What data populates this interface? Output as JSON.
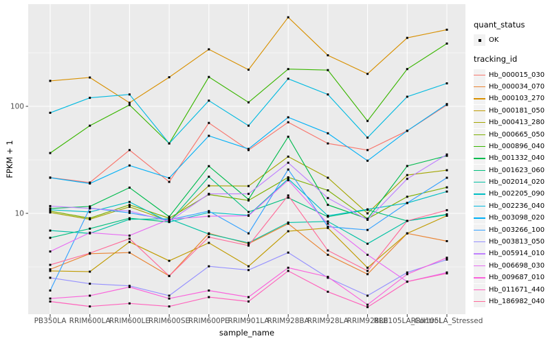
{
  "figure": {
    "background": "#FFFFFF",
    "panel_background": "#EBEBEB",
    "gridline_color": "#FFFFFF",
    "axis_text_color": "#4D4D4D",
    "tick_mark_color": "#333333",
    "marker_color": "#000000"
  },
  "axes": {
    "x_title": "sample_name",
    "y_title": "FPKM + 1",
    "y_scale": "log10",
    "y_major_ticks": [
      {
        "label": "100",
        "value": 100
      },
      {
        "label": "10",
        "value": 10
      }
    ],
    "y_minor_values": [
      3.1623,
      31.623,
      316.23
    ]
  },
  "legend": {
    "quant_title": "quant_status",
    "quant_items": [
      {
        "label": "OK"
      }
    ],
    "tracking_title": "tracking_id"
  },
  "chart_data": {
    "type": "line",
    "title": "",
    "xlabel": "sample_name",
    "ylabel": "FPKM + 1",
    "y_scale": "log10",
    "ylim": [
      1.07,
      860
    ],
    "grid": true,
    "legend_position": "right",
    "marker": "black-square",
    "categories": [
      "PB350LA",
      "RRIM600LA",
      "RRIM600LE",
      "RRIM600SE",
      "RRIM600PE",
      "RRIM901LA",
      "RRIM928BA",
      "RRIM928LA",
      "RRIM928LB",
      "RRII105LA_Control",
      "RRII105LA_Stressed"
    ],
    "series": [
      {
        "name": "Hb_000015_030",
        "color": "#F8766D",
        "values": [
          21.6,
          19.4,
          39,
          19.7,
          70,
          39,
          71,
          45,
          39,
          59,
          103
        ]
      },
      {
        "name": "Hb_000034_070",
        "color": "#EA8331",
        "values": [
          3.0,
          4.2,
          4.3,
          2.6,
          6.5,
          5.2,
          8.0,
          4.1,
          2.7,
          6.5,
          5.5
        ]
      },
      {
        "name": "Hb_000103_270",
        "color": "#D89000",
        "values": [
          173,
          186,
          108,
          187,
          341,
          220,
          679,
          300,
          201,
          436,
          520
        ]
      },
      {
        "name": "Hb_000181_050",
        "color": "#C09B00",
        "values": [
          2.9,
          2.85,
          5.4,
          3.6,
          5.3,
          3.2,
          6.8,
          7.3,
          3.1,
          6.5,
          9.5
        ]
      },
      {
        "name": "Hb_000413_280",
        "color": "#A3A500",
        "values": [
          10.2,
          8.8,
          11.5,
          8.5,
          18.1,
          18,
          33.9,
          21.5,
          10.0,
          22.8,
          25.3
        ]
      },
      {
        "name": "Hb_000665_050",
        "color": "#7CAE00",
        "values": [
          10.5,
          9.0,
          12.0,
          9.0,
          15.0,
          13.2,
          21.7,
          16.4,
          8.9,
          14.3,
          17.5
        ]
      },
      {
        "name": "Hb_000896_040",
        "color": "#39B600",
        "values": [
          36.6,
          66,
          103,
          45,
          188,
          109,
          223,
          218,
          73,
          223,
          386
        ]
      },
      {
        "name": "Hb_001332_040",
        "color": "#00BB4E",
        "values": [
          11.1,
          11.6,
          17.4,
          9.3,
          27.6,
          13.5,
          52,
          12.0,
          8.9,
          27.7,
          34.5
        ]
      },
      {
        "name": "Hb_001623_060",
        "color": "#00BF7D",
        "values": [
          5.9,
          7.2,
          9.0,
          8.3,
          22.0,
          10.3,
          14.0,
          9.3,
          10.8,
          8.5,
          9.8
        ]
      },
      {
        "name": "Hb_002014_020",
        "color": "#00C1A3",
        "values": [
          6.9,
          6.5,
          8.8,
          8.9,
          6.4,
          5.3,
          8.2,
          8.4,
          5.2,
          8.5,
          9.7
        ]
      },
      {
        "name": "Hb_002205_090",
        "color": "#00BFC4",
        "values": [
          10.8,
          10.3,
          12.8,
          8.3,
          10.2,
          9.6,
          21.0,
          9.5,
          10.9,
          12.5,
          16.0
        ]
      },
      {
        "name": "Hb_002236_040",
        "color": "#00BAE0",
        "values": [
          87,
          120,
          129,
          45,
          113,
          66,
          181,
          129,
          51,
          123,
          164
        ]
      },
      {
        "name": "Hb_003098_020",
        "color": "#00B0F6",
        "values": [
          21.5,
          19,
          28,
          21.4,
          53,
          40,
          79,
          56,
          31,
          59,
          105
        ]
      },
      {
        "name": "Hb_003266_100",
        "color": "#35A2FF",
        "values": [
          1.9,
          11.2,
          10.1,
          8.7,
          10.5,
          6.5,
          25.7,
          7.5,
          7.0,
          12.5,
          21.5
        ]
      },
      {
        "name": "Hb_003813_050",
        "color": "#9590FF",
        "values": [
          2.5,
          2.2,
          2.1,
          1.7,
          3.2,
          2.95,
          4.3,
          2.5,
          1.7,
          2.8,
          3.7
        ]
      },
      {
        "name": "Hb_005914_010",
        "color": "#BF80FF",
        "values": [
          11.7,
          11.1,
          10.5,
          8.4,
          15.2,
          15.2,
          29.7,
          13.9,
          8.7,
          21.0,
          35.5
        ]
      },
      {
        "name": "Hb_006698_030",
        "color": "#E76BF3",
        "values": [
          4.4,
          6.6,
          6.2,
          8.8,
          9.4,
          9.5,
          20.4,
          8.0,
          4.1,
          2.3,
          2.8
        ]
      },
      {
        "name": "Hb_009687_010",
        "color": "#FA62DB",
        "values": [
          1.6,
          1.7,
          2.05,
          1.6,
          1.9,
          1.65,
          3.1,
          2.55,
          1.4,
          2.7,
          3.85
        ]
      },
      {
        "name": "Hb_011671_440",
        "color": "#FF62BC",
        "values": [
          1.5,
          1.35,
          1.44,
          1.35,
          1.65,
          1.5,
          2.9,
          1.85,
          1.33,
          2.3,
          2.75
        ]
      },
      {
        "name": "Hb_186982_040",
        "color": "#FF6A98",
        "values": [
          3.3,
          4.25,
          5.8,
          2.6,
          6.0,
          5.0,
          14.7,
          4.5,
          2.9,
          8.5,
          10.7
        ]
      }
    ]
  }
}
